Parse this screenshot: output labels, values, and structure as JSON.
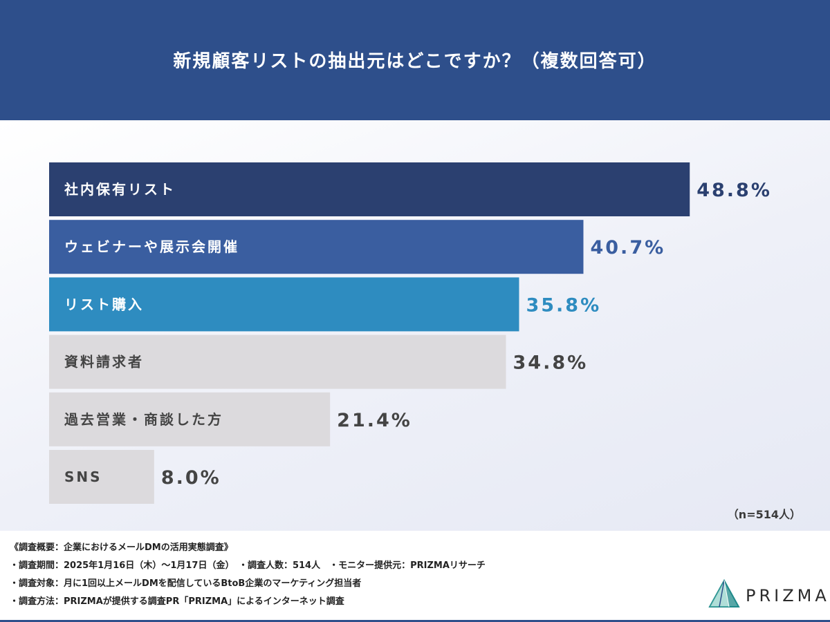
{
  "title": "新規顧客リストの抽出元はどこですか？（複数回答可）",
  "chart_data": {
    "type": "bar",
    "orientation": "horizontal",
    "categories": [
      "社内保有リスト",
      "ウェビナーや展示会開催",
      "リスト購入",
      "資料請求者",
      "過去営業・商談した方",
      "SNS"
    ],
    "values": [
      48.8,
      40.7,
      35.8,
      34.8,
      21.4,
      8.0
    ],
    "value_labels": [
      "48.8%",
      "40.7%",
      "35.8%",
      "34.8%",
      "21.4%",
      "8.0%"
    ],
    "bar_colors": [
      "#2b4070",
      "#3a5ea0",
      "#2e8cc0",
      "#dcdadd",
      "#dcdadd",
      "#dcdadd"
    ],
    "label_colors": [
      "#ffffff",
      "#ffffff",
      "#ffffff",
      "#444444",
      "#444444",
      "#444444"
    ],
    "value_colors": [
      "#2b4070",
      "#3a5ea0",
      "#2e8cc0",
      "#444444",
      "#444444",
      "#444444"
    ],
    "xlim": [
      0,
      50
    ],
    "unit": "%",
    "grid": false,
    "title": "新規顧客リストの抽出元はどこですか？（複数回答可）"
  },
  "sample_note": "（n=514人）",
  "survey_notes": [
    "《調査概要：企業におけるメールDMの活用実態調査》",
    "・調査期間：2025年1月16日（木）〜1月17日（金）　・調査人数：514人　・モニター提供元：PRIZMAリサーチ",
    "・調査対象：月に1回以上メールDMを配信しているBtoB企業のマーケティング担当者",
    "・調査方法：PRIZMAが提供する調査PR「PRIZMA」によるインターネット調査"
  ],
  "logo": {
    "text": "PRIZMA",
    "icon": "prism-triangle-icon",
    "colors": [
      "#1f8a8a",
      "#6fc2b8",
      "#2e4f8b"
    ]
  },
  "colors": {
    "header_bg": "#2e4f8b",
    "accent": "#2e8cc0"
  }
}
